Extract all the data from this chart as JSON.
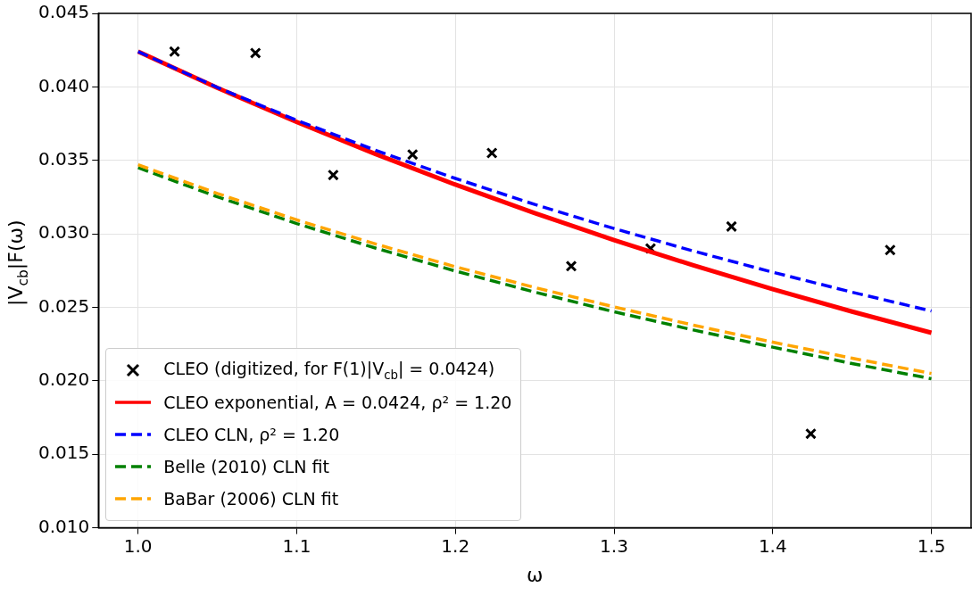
{
  "chart_data": {
    "type": "line",
    "xlabel": "ω",
    "ylabel": "|V$_{cb}$|F(ω)",
    "xlim": [
      0.975,
      1.525
    ],
    "xticks": [
      {
        "value": 1.0,
        "label": "1.0"
      },
      1.1,
      1.2,
      1.3,
      1.4,
      {
        "value": 1.5,
        "label": "1.5"
      }
    ],
    "ylim": [
      0.01,
      0.045
    ],
    "yticks": [
      {
        "value": 0.01,
        "label": "0.010"
      },
      {
        "value": 0.015,
        "label": "0.015"
      },
      {
        "value": 0.02,
        "label": "0.020"
      },
      {
        "value": 0.025,
        "label": "0.025"
      },
      {
        "value": 0.03,
        "label": "0.030"
      },
      {
        "value": 0.035,
        "label": "0.035"
      },
      {
        "value": 0.04,
        "label": "0.040"
      },
      {
        "value": 0.045,
        "label": "0.045"
      }
    ],
    "grid": true,
    "legend": "bottom left",
    "series": [
      {
        "type": "scatter",
        "name": "CLEO (digitized, for F(1)|V$_{cb}$| = 0.0424)",
        "color": "#000000",
        "marker": "cross",
        "x": [
          1.023,
          1.074,
          1.123,
          1.173,
          1.223,
          1.273,
          1.323,
          1.374,
          1.424,
          1.474
        ],
        "values": [
          0.0424,
          0.0423,
          0.034,
          0.0354,
          0.0355,
          0.0278,
          0.029,
          0.0305,
          0.0164,
          0.0289
        ]
      },
      {
        "type": "line",
        "name": "CLEO exponential, A = 0.0424, ρ² = 1.20",
        "color": "#ff0000",
        "line_style": "solid",
        "marker": "none",
        "x": [
          1.0,
          1.05,
          1.1,
          1.15,
          1.2,
          1.25,
          1.3,
          1.35,
          1.4,
          1.45,
          1.5
        ],
        "values": [
          0.0424,
          0.03993,
          0.03761,
          0.03542,
          0.03335,
          0.03141,
          0.02958,
          0.02786,
          0.02624,
          0.02471,
          0.02327
        ]
      },
      {
        "type": "line",
        "name": "CLEO CLN, ρ² = 1.20",
        "color": "#0000ff",
        "line_style": "dashed",
        "marker": "none",
        "x": [
          1.0,
          1.05,
          1.1,
          1.15,
          1.2,
          1.25,
          1.3,
          1.35,
          1.4,
          1.45,
          1.5
        ],
        "values": [
          0.0424,
          0.03996,
          0.03773,
          0.03567,
          0.03377,
          0.032,
          0.03036,
          0.02883,
          0.02739,
          0.02603,
          0.02475
        ]
      },
      {
        "type": "line",
        "name": "Belle (2010) CLN fit",
        "color": "#008000",
        "line_style": "dashed",
        "marker": "none",
        "x": [
          1.0,
          1.05,
          1.1,
          1.15,
          1.2,
          1.25,
          1.3,
          1.35,
          1.4,
          1.45,
          1.5
        ],
        "values": [
          0.0345,
          0.03252,
          0.0307,
          0.02902,
          0.02747,
          0.02604,
          0.0247,
          0.02346,
          0.02229,
          0.02118,
          0.02014
        ]
      },
      {
        "type": "line",
        "name": "BaBar (2006) CLN fit",
        "color": "#ffa500",
        "line_style": "dashed",
        "marker": "none",
        "x": [
          1.0,
          1.05,
          1.1,
          1.15,
          1.2,
          1.25,
          1.3,
          1.35,
          1.4,
          1.45,
          1.5
        ],
        "values": [
          0.0347,
          0.03275,
          0.03095,
          0.0293,
          0.02776,
          0.02635,
          0.02503,
          0.02379,
          0.02263,
          0.02154,
          0.0205
        ]
      }
    ]
  }
}
